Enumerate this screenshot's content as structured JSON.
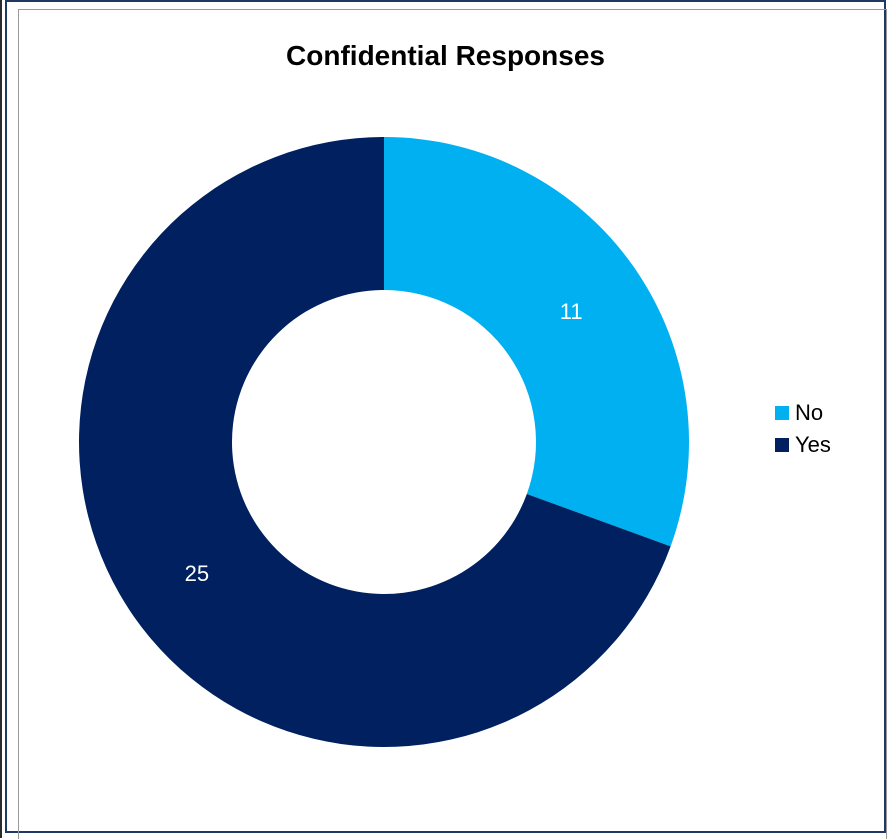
{
  "chart_data": {
    "type": "pie",
    "subtype": "donut",
    "title": "Confidential Responses",
    "categories": [
      "No",
      "Yes"
    ],
    "values": [
      11,
      25
    ],
    "colors": [
      "#00b0f0",
      "#002060"
    ],
    "data_labels": [
      "11",
      "25"
    ],
    "legend_position": "right",
    "start_angle": "12 o'clock, clockwise"
  }
}
